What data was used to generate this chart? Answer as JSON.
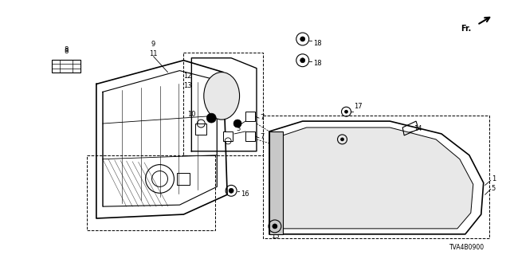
{
  "background_color": "#ffffff",
  "diagram_id": "TVA4B0900",
  "lw_main": 1.0,
  "lw_thin": 0.6,
  "label_fs": 6.0
}
